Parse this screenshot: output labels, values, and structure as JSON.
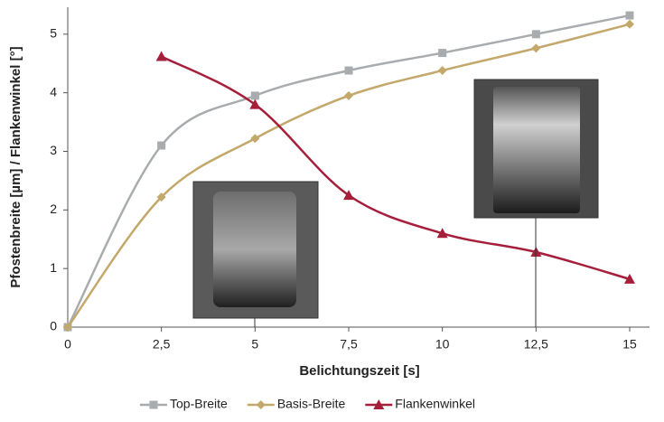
{
  "chart_data": {
    "type": "line",
    "x_label": "Belichtungszeit [s]",
    "y_label": "Pfostenbreite [µm] / Flankenwinkel [°]",
    "x": [
      0,
      2.5,
      5,
      7.5,
      10,
      12.5,
      15
    ],
    "xlim": [
      0,
      15
    ],
    "xticks": [
      0,
      {
        "value": 2.5,
        "label": "2,5"
      },
      5,
      {
        "value": 7.5,
        "label": "7,5"
      },
      10,
      {
        "value": 12.5,
        "label": "12,5"
      },
      15
    ],
    "ylim": [
      0,
      5.46
    ],
    "yticks": [
      0,
      1,
      2,
      3,
      4,
      5
    ],
    "legend": "bottom",
    "series": [
      {
        "name": "Top-Breite",
        "color": "#a9acae",
        "marker": "square",
        "values": [
          0,
          3.1,
          3.95,
          4.38,
          4.68,
          5.0,
          5.32
        ]
      },
      {
        "name": "Basis-Breite",
        "color": "#c3a86b",
        "marker": "diamond",
        "values": [
          0,
          2.22,
          3.22,
          3.95,
          4.38,
          4.76,
          5.17
        ]
      },
      {
        "name": "Flankenwinkel",
        "color": "#a51f3b",
        "marker": "triangle",
        "values": [
          null,
          4.62,
          3.8,
          2.25,
          1.6,
          1.28,
          0.82
        ]
      }
    ]
  }
}
